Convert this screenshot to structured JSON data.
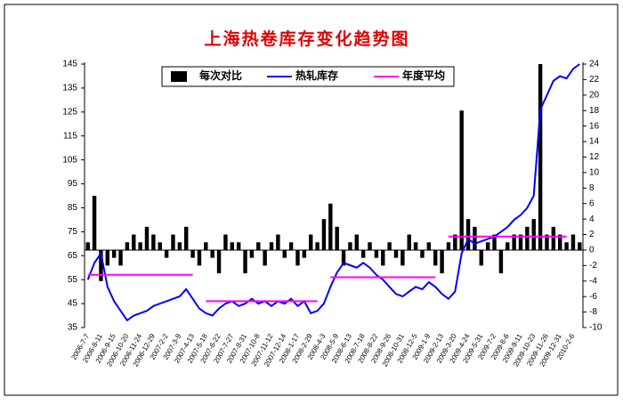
{
  "chart_data": {
    "type": "bar",
    "title": "上海热卷库存变化趋势图",
    "categories": [
      "2006-7-7",
      null,
      "2006-8-11",
      null,
      "2006-9-15",
      null,
      "2006-10-20",
      null,
      "2006-11-24",
      null,
      "2006-12-29",
      null,
      "2007-2-2",
      null,
      "2007-3-9",
      null,
      "2007-4-13",
      null,
      "2007-5-18",
      null,
      "2007-6-22",
      null,
      "2007-7-27",
      null,
      "2007-8-31",
      null,
      "2007-10-8",
      null,
      "2007-11-12",
      null,
      "2007-12-14",
      null,
      "2008-1-17",
      null,
      "2008-2-29",
      null,
      "2008-4-3",
      null,
      "2008-5-9",
      null,
      "2008-6-13",
      null,
      "2008-7-18",
      null,
      "2008-8-22",
      null,
      "2008-9-26",
      null,
      "2008-10-31",
      null,
      "2008-12-5",
      null,
      "2009-1-9",
      null,
      "2009-2-13",
      null,
      "2009-3-20",
      null,
      "2009-4-24",
      null,
      "2009-5-31",
      null,
      "2009-7-2",
      null,
      "2009-8-6",
      null,
      "2009-9-11",
      null,
      "2009-10-23",
      null,
      "2009-11-26",
      null,
      "2009-12-31",
      null,
      "2010-2-6",
      null
    ],
    "series": [
      {
        "name": "每次对比",
        "type": "bar",
        "axis": "y2",
        "color": "#000000",
        "values": [
          1,
          7,
          -4,
          -2,
          -1,
          -2,
          1,
          2,
          1,
          3,
          2,
          1,
          -1,
          2,
          1,
          3,
          -1,
          -2,
          1,
          -1,
          -3,
          2,
          1,
          1,
          -3,
          -1,
          1,
          -2,
          1,
          2,
          -1,
          1,
          -2,
          -1,
          2,
          1,
          4,
          6,
          3,
          -2,
          1,
          2,
          -1,
          1,
          -1,
          -2,
          1,
          -1,
          -2,
          2,
          1,
          -1,
          1,
          -2,
          -3,
          1,
          2,
          18,
          4,
          3,
          -2,
          1,
          2,
          -3,
          1,
          2,
          2,
          3,
          4,
          24,
          2,
          3,
          2,
          1,
          2,
          1
        ]
      },
      {
        "name": "热轧库存",
        "type": "line",
        "color": "#0000ff",
        "values": [
          55,
          62,
          66,
          52,
          46,
          42,
          38,
          40,
          41,
          42,
          44,
          45,
          46,
          47,
          48,
          51,
          47,
          43,
          41,
          40,
          43,
          45,
          46,
          44,
          45,
          47,
          45,
          46,
          44,
          46,
          45,
          47,
          44,
          46,
          41,
          42,
          45,
          52,
          58,
          62,
          61,
          60,
          62,
          60,
          57,
          55,
          52,
          49,
          48,
          50,
          52,
          51,
          54,
          52,
          49,
          47,
          50,
          66,
          72,
          70,
          71,
          72,
          73,
          75,
          77,
          80,
          82,
          85,
          90,
          126,
          132,
          138,
          140,
          139,
          143,
          145
        ]
      },
      {
        "name": "年度平均",
        "type": "line",
        "color": "#ff00ff",
        "values": [
          57,
          57,
          57,
          57,
          57,
          57,
          57,
          57,
          57,
          57,
          57,
          57,
          57,
          57,
          57,
          57,
          57,
          null,
          46,
          46,
          46,
          46,
          46,
          46,
          46,
          46,
          46,
          46,
          46,
          46,
          46,
          46,
          46,
          46,
          46,
          46,
          null,
          56,
          56,
          56,
          56,
          56,
          56,
          56,
          56,
          56,
          56,
          56,
          56,
          56,
          56,
          56,
          56,
          56,
          null,
          73,
          73,
          73,
          73,
          73,
          73,
          73,
          73,
          73,
          73,
          73,
          73,
          73,
          73,
          73,
          73,
          73,
          73,
          73,
          null,
          null
        ]
      }
    ],
    "ylim": [
      35,
      145
    ],
    "yticks": [
      35,
      45,
      55,
      65,
      75,
      85,
      95,
      105,
      115,
      125,
      135,
      145
    ],
    "y2lim": [
      -10,
      24
    ],
    "y2ticks": [
      -10,
      -8,
      -6,
      -4,
      -2,
      0,
      2,
      4,
      6,
      8,
      10,
      12,
      14,
      16,
      18,
      20,
      22,
      24
    ],
    "grid": false
  }
}
